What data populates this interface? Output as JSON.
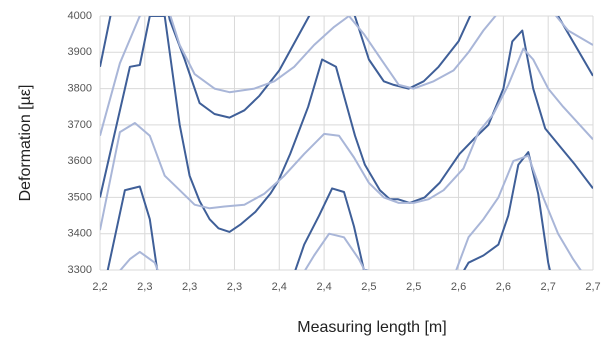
{
  "chart_data": {
    "type": "line",
    "y_label": "Deformation [µε]",
    "x_label": "Measuring length [m]",
    "xlim": [
      2.205,
      2.7
    ],
    "xticks": [
      {
        "value": 2.205,
        "label": "2,2"
      },
      {
        "value": 2.25,
        "label": "2,3"
      },
      {
        "value": 2.295,
        "label": "2,3"
      },
      {
        "value": 2.34,
        "label": "2,3"
      },
      {
        "value": 2.385,
        "label": "2,4"
      },
      {
        "value": 2.43,
        "label": "2,4"
      },
      {
        "value": 2.475,
        "label": "2,5"
      },
      {
        "value": 2.52,
        "label": "2,5"
      },
      {
        "value": 2.565,
        "label": "2,6"
      },
      {
        "value": 2.61,
        "label": "2,6"
      },
      {
        "value": 2.655,
        "label": "2,7"
      },
      {
        "value": 2.7,
        "label": "2,7"
      }
    ],
    "ylim": [
      3300,
      4000
    ],
    "yticks": [
      3300,
      3400,
      3500,
      3600,
      3700,
      3800,
      3900,
      4000
    ],
    "grid": true,
    "series": [
      {
        "color": "#3f5f98",
        "x": [
          2.205,
          2.22,
          2.27,
          2.275,
          2.29,
          2.305,
          2.32,
          2.335,
          2.35,
          2.365,
          2.385,
          2.405,
          2.425,
          2.455,
          2.475,
          2.49,
          2.5,
          2.515,
          2.53,
          2.545,
          2.565,
          2.58,
          2.65,
          2.665,
          2.7
        ],
        "values": [
          3860,
          4060,
          4060,
          3990,
          3880,
          3760,
          3730,
          3720,
          3740,
          3780,
          3850,
          3950,
          4050,
          4050,
          3880,
          3820,
          3810,
          3800,
          3820,
          3860,
          3930,
          4020,
          4030,
          4000,
          3835
        ]
      },
      {
        "color": "#a9b6d8",
        "x": [
          2.205,
          2.225,
          2.245,
          2.27,
          2.285,
          2.3,
          2.32,
          2.335,
          2.36,
          2.38,
          2.4,
          2.42,
          2.44,
          2.455,
          2.47,
          2.49,
          2.505,
          2.52,
          2.54,
          2.56,
          2.575,
          2.59,
          2.605,
          2.66,
          2.675,
          2.7
        ],
        "values": [
          3670,
          3870,
          4000,
          4050,
          3920,
          3840,
          3800,
          3790,
          3800,
          3820,
          3860,
          3920,
          3970,
          4000,
          3950,
          3870,
          3810,
          3800,
          3820,
          3850,
          3900,
          3960,
          4010,
          4010,
          3960,
          3920
        ]
      },
      {
        "color": "#3f5f98",
        "x": [
          2.205,
          2.235,
          2.245,
          2.255,
          2.27,
          2.285,
          2.295,
          2.305,
          2.315,
          2.324,
          2.335,
          2.346,
          2.361,
          2.376,
          2.384,
          2.396,
          2.414,
          2.428,
          2.442,
          2.451,
          2.461,
          2.471,
          2.486,
          2.496,
          2.504,
          2.516,
          2.531,
          2.546,
          2.566,
          2.58,
          2.595,
          2.61,
          2.619,
          2.629,
          2.64,
          2.652,
          2.667,
          2.682,
          2.7
        ],
        "values": [
          3500,
          3860,
          3865,
          4000,
          4000,
          3700,
          3560,
          3490,
          3440,
          3415,
          3405,
          3425,
          3460,
          3510,
          3545,
          3620,
          3750,
          3880,
          3860,
          3770,
          3670,
          3590,
          3520,
          3495,
          3495,
          3485,
          3500,
          3540,
          3620,
          3660,
          3700,
          3800,
          3930,
          3960,
          3800,
          3690,
          3640,
          3590,
          3525
        ]
      },
      {
        "color": "#a9b6d8",
        "x": [
          2.205,
          2.225,
          2.24,
          2.255,
          2.27,
          2.285,
          2.3,
          2.315,
          2.33,
          2.35,
          2.37,
          2.39,
          2.41,
          2.43,
          2.445,
          2.46,
          2.475,
          2.49,
          2.505,
          2.52,
          2.535,
          2.55,
          2.57,
          2.585,
          2.6,
          2.615,
          2.63,
          2.64,
          2.655,
          2.67,
          2.7
        ],
        "values": [
          3410,
          3680,
          3705,
          3670,
          3560,
          3520,
          3480,
          3470,
          3475,
          3480,
          3510,
          3560,
          3620,
          3675,
          3670,
          3610,
          3540,
          3500,
          3485,
          3485,
          3495,
          3520,
          3580,
          3680,
          3730,
          3810,
          3910,
          3880,
          3800,
          3750,
          3660
        ]
      },
      {
        "color": "#3f5f98",
        "x": [
          2.205,
          2.23,
          2.245,
          2.255,
          2.265,
          2.395,
          2.41,
          2.425,
          2.438,
          2.45,
          2.46,
          2.47,
          2.56,
          2.575,
          2.59,
          2.605,
          2.615,
          2.625,
          2.635,
          2.645,
          2.655,
          2.665
        ],
        "values": [
          3200,
          3520,
          3530,
          3440,
          3250,
          3250,
          3370,
          3450,
          3525,
          3515,
          3420,
          3300,
          3250,
          3320,
          3340,
          3370,
          3450,
          3590,
          3625,
          3510,
          3320,
          3200
        ]
      },
      {
        "color": "#a9b6d8",
        "x": [
          2.21,
          2.235,
          2.245,
          2.26,
          2.27,
          2.4,
          2.42,
          2.435,
          2.45,
          2.465,
          2.48,
          2.56,
          2.575,
          2.59,
          2.605,
          2.62,
          2.635,
          2.65,
          2.665,
          2.68,
          2.7
        ],
        "values": [
          3250,
          3330,
          3350,
          3320,
          3250,
          3250,
          3340,
          3400,
          3390,
          3330,
          3250,
          3280,
          3390,
          3440,
          3500,
          3600,
          3615,
          3500,
          3400,
          3330,
          3250
        ]
      }
    ]
  }
}
